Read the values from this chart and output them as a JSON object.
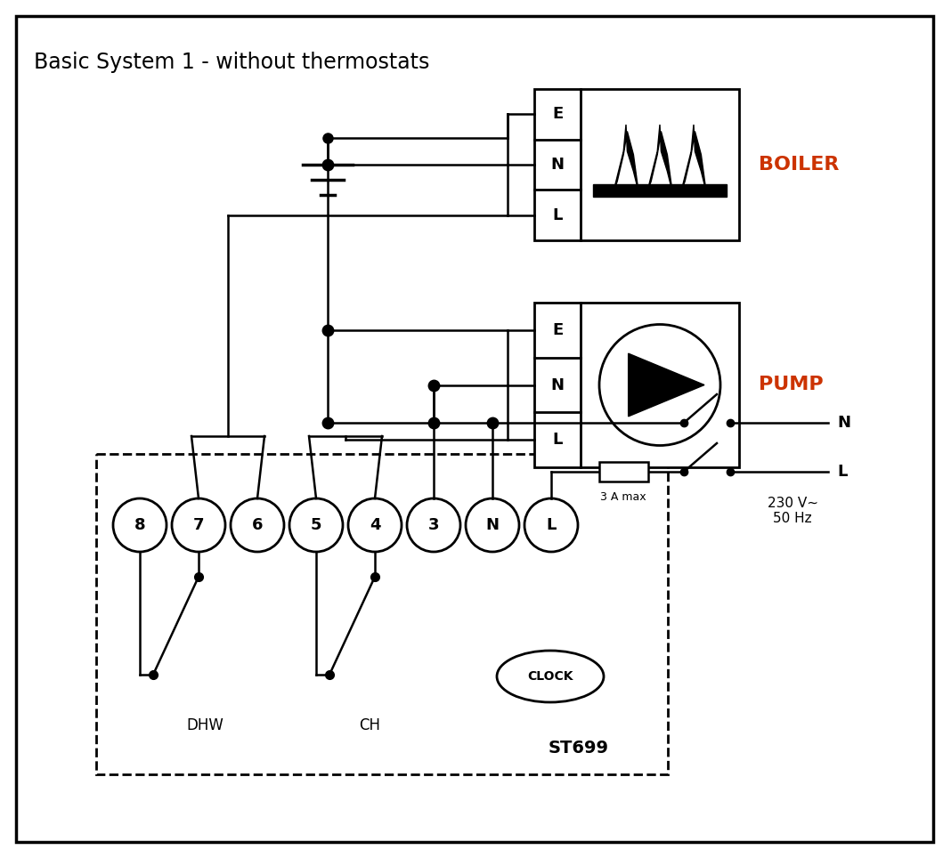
{
  "title": "Basic System 1 - without thermostats",
  "bg_color": "#f2f2f2",
  "line_color": "#000000",
  "boiler_label": "BOILER",
  "pump_label": "PUMP",
  "terminal_labels": [
    "8",
    "7",
    "6",
    "5",
    "4",
    "3",
    "N",
    "L"
  ],
  "dhw_label": "DHW",
  "ch_label": "CH",
  "clock_label": "CLOCK",
  "st699_label": "ST699",
  "fuse_label": "3 A max",
  "voltage_label": "230 V~\n50 Hz",
  "n_label": "N",
  "l_label": "L",
  "boiler_color": "#cc3300",
  "pump_color": "#cc3300"
}
